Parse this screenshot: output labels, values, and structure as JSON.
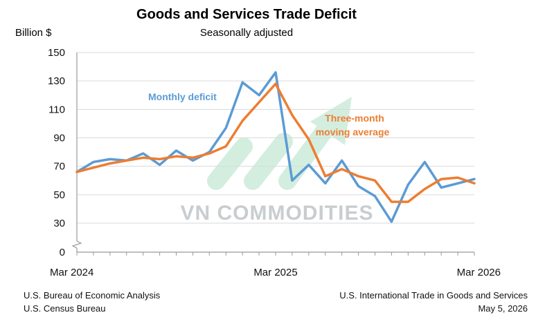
{
  "chart_data": {
    "type": "line",
    "title": "Goods and Services Trade Deficit",
    "subtitle": "Seasonally adjusted",
    "ylabel": "Billion $",
    "ylim": [
      0,
      150
    ],
    "yticks": [
      0,
      30,
      50,
      70,
      90,
      110,
      130,
      150
    ],
    "y_axis_break": true,
    "x_tick_labels": [
      "Mar 2024",
      "Mar 2025",
      "Mar 2026"
    ],
    "x_tick_index": [
      0,
      12,
      24
    ],
    "grid": "horizontal",
    "x": [
      "Mar 2024",
      "Apr 2024",
      "May 2024",
      "Jun 2024",
      "Jul 2024",
      "Aug 2024",
      "Sep 2024",
      "Oct 2024",
      "Nov 2024",
      "Dec 2024",
      "Jan 2025",
      "Feb 2025",
      "Mar 2025",
      "Apr 2025",
      "May 2025",
      "Jun 2025",
      "Jul 2025",
      "Aug 2025",
      "Sep 2025",
      "Oct 2025",
      "Nov 2025",
      "Dec 2025",
      "Jan 2026",
      "Feb 2026",
      "Mar 2026"
    ],
    "series": [
      {
        "name": "Monthly deficit",
        "color": "#5b9bd5",
        "values": [
          66,
          73,
          75,
          74,
          79,
          71,
          81,
          74,
          80,
          97,
          129,
          120,
          136,
          60,
          71,
          58,
          74,
          56,
          49,
          31,
          57,
          73,
          55,
          58,
          61
        ]
      },
      {
        "name": "Three-month moving average",
        "color": "#ed7d31",
        "values": [
          66,
          69,
          72,
          74,
          76,
          75,
          77,
          76,
          79,
          84,
          102,
          115,
          128,
          106,
          89,
          63,
          68,
          63,
          60,
          45,
          45,
          54,
          61,
          62,
          58
        ]
      }
    ],
    "annotations": {
      "monthly": "Monthly deficit",
      "moving_avg_line1": "Three-month",
      "moving_avg_line2": "moving average"
    },
    "watermark": "VN COMMODITIES"
  },
  "footer": {
    "source_line1": "U.S. Bureau of Economic Analysis",
    "source_line2": "U.S. Census Bureau",
    "release_line1": "U.S. International Trade in Goods and Services",
    "release_line2": "May 5, 2026"
  }
}
